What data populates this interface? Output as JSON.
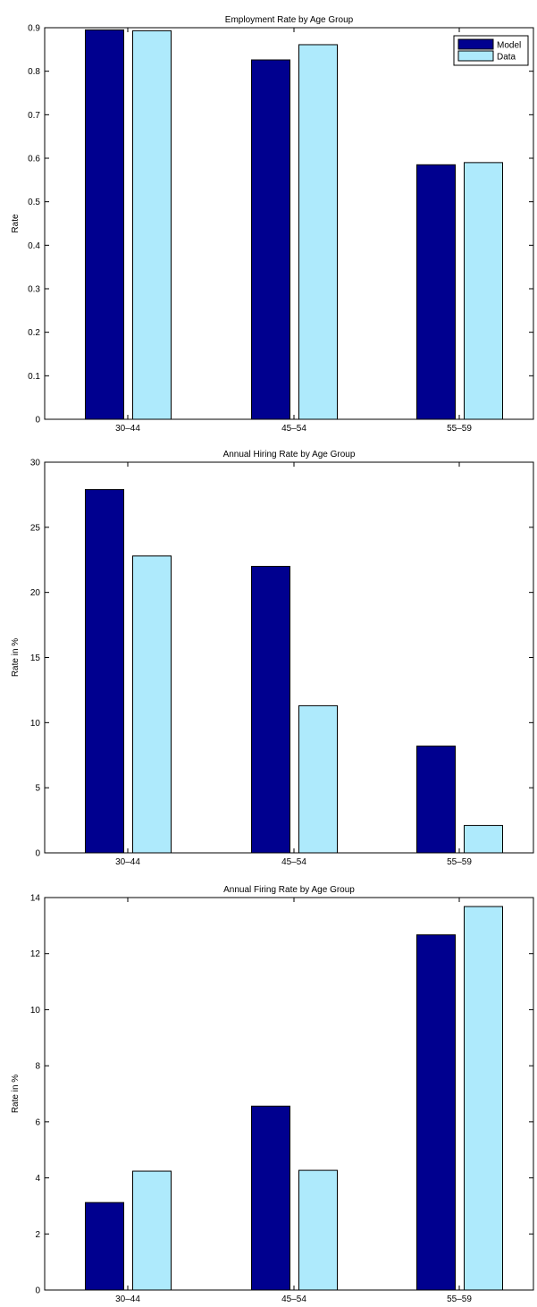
{
  "chart_data": [
    {
      "type": "bar",
      "title": "Employment Rate by Age Group",
      "xlabel": "",
      "ylabel": "Rate",
      "categories": [
        "30–44",
        "45–54",
        "55–59"
      ],
      "ylim": [
        0,
        0.9
      ],
      "yticks": [
        "0",
        "0.1",
        "0.2",
        "0.3",
        "0.4",
        "0.5",
        "0.6",
        "0.7",
        "0.8",
        "0.9"
      ],
      "legend": "top-right",
      "grid": false,
      "series": [
        {
          "name": "Model",
          "color": "#00008f",
          "values": [
            0.895,
            0.826,
            0.585
          ]
        },
        {
          "name": "Data",
          "color": "#aeeafc",
          "values": [
            0.893,
            0.861,
            0.59
          ]
        }
      ]
    },
    {
      "type": "bar",
      "title": "Annual Hiring Rate by Age Group",
      "xlabel": "",
      "ylabel": "Rate in %",
      "categories": [
        "30–44",
        "45–54",
        "55–59"
      ],
      "ylim": [
        0,
        30
      ],
      "yticks": [
        "0",
        "5",
        "10",
        "15",
        "20",
        "25",
        "30"
      ],
      "grid": false,
      "series": [
        {
          "name": "Model",
          "color": "#00008f",
          "values": [
            27.9,
            22.0,
            8.2
          ]
        },
        {
          "name": "Data",
          "color": "#aeeafc",
          "values": [
            22.8,
            11.3,
            2.1
          ]
        }
      ]
    },
    {
      "type": "bar",
      "title": "Annual Firing Rate by Age Group",
      "xlabel": "",
      "ylabel": "Rate in %",
      "categories": [
        "30–44",
        "45–54",
        "55–59"
      ],
      "ylim": [
        0,
        14
      ],
      "yticks": [
        "0",
        "2",
        "4",
        "6",
        "8",
        "10",
        "12",
        "14"
      ],
      "grid": false,
      "series": [
        {
          "name": "Model",
          "color": "#00008f",
          "values": [
            3.12,
            6.56,
            12.67
          ]
        },
        {
          "name": "Data",
          "color": "#aeeafc",
          "values": [
            4.24,
            4.27,
            13.68
          ]
        }
      ]
    }
  ]
}
